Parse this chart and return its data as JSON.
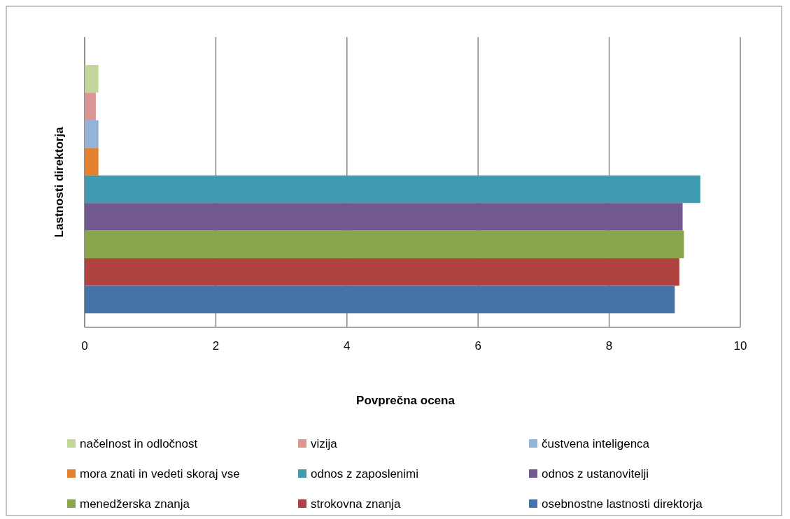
{
  "chart_data": {
    "type": "bar",
    "orientation": "horizontal",
    "categories": [
      null
    ],
    "xlabel": "Povprečna ocena",
    "ylabel": "Lastnosti direktorja",
    "xlim": [
      0,
      10
    ],
    "xticks": [
      0,
      2,
      4,
      6,
      8,
      10
    ],
    "grid": "x",
    "legend": "bottom",
    "series": [
      {
        "name": "načelnost in odločnost",
        "color": "#c3d69b",
        "values": [
          0.21
        ]
      },
      {
        "name": "vizija",
        "color": "#d99694",
        "values": [
          0.17
        ]
      },
      {
        "name": "čustvena inteligenca",
        "color": "#95b3d7",
        "values": [
          0.21
        ]
      },
      {
        "name": "mora znati in vedeti skoraj vse",
        "color": "#e5822f",
        "values": [
          0.21
        ]
      },
      {
        "name": "odnos z zaposlenimi",
        "color": "#3e9bb0",
        "values": [
          9.39
        ]
      },
      {
        "name": "odnos z ustanovitelji",
        "color": "#71588f",
        "values": [
          9.12
        ]
      },
      {
        "name": "menedžerska znanja",
        "color": "#8aa64a",
        "values": [
          9.14
        ]
      },
      {
        "name": "strokovna znanja",
        "color": "#b0433f",
        "values": [
          9.07
        ]
      },
      {
        "name": "osebnostne lastnosti direktorja",
        "color": "#4572a7",
        "values": [
          9.0
        ]
      }
    ]
  }
}
